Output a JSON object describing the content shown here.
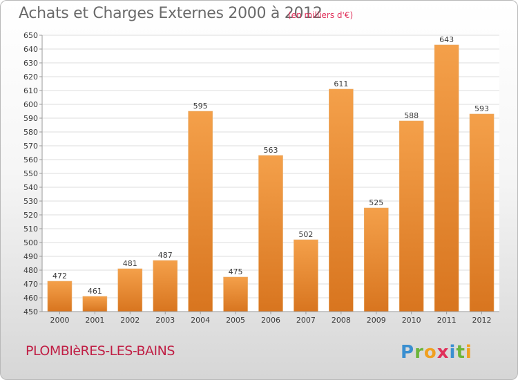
{
  "header": {
    "title": "Achats et Charges Externes 2000 à 2012",
    "subtitle": "(en milliers d'€)"
  },
  "footer": {
    "commune": "PLOMBIèRES-LES-BAINS",
    "logo_text": "Proxiti"
  },
  "colors": {
    "bar_top": "#f4a04a",
    "bar_bottom": "#d8751f",
    "grid": "#dedede",
    "axis": "#9a9a9a",
    "title": "#6a6a6a",
    "subtitle": "#e0305a",
    "commune": "#c01f45"
  },
  "chart_data": {
    "type": "bar",
    "title": "Achats et Charges Externes 2000 à 2012",
    "subtitle": "(en milliers d'€)",
    "xlabel": "",
    "ylabel": "",
    "categories": [
      "2000",
      "2001",
      "2002",
      "2003",
      "2004",
      "2005",
      "2006",
      "2007",
      "2008",
      "2009",
      "2010",
      "2011",
      "2012"
    ],
    "values": [
      472,
      461,
      481,
      487,
      595,
      475,
      563,
      502,
      611,
      525,
      588,
      643,
      593
    ],
    "ylim": [
      450,
      650
    ],
    "ytick_step": 10,
    "grid": true,
    "data_labels": true
  }
}
